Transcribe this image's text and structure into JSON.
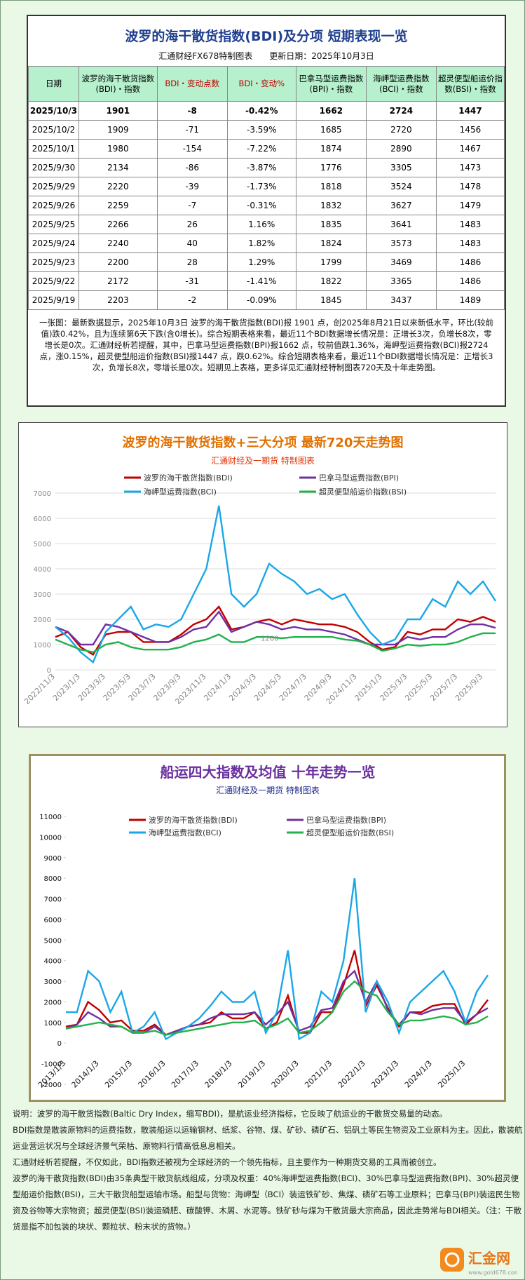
{
  "header": {
    "title": "波罗的海干散货指数(BDI)及分项  短期表现一览",
    "source": "汇通财经FX678特制图表",
    "updated": "更新日期：2025年10月3日"
  },
  "table": {
    "header": [
      "日期",
      "波罗的海干散货指数(BDI)・指数",
      "BDI・变动点数",
      "BDI・变动%",
      "巴拿马型运费指数(BPI)・指数",
      "海岬型运费指数(BCI)・指数",
      "超灵便型船运价指数(BSI)・指数"
    ],
    "rows": [
      [
        "2025/10/3",
        "1901",
        "-8",
        "-0.42%",
        "1662",
        "2724",
        "1447"
      ],
      [
        "2025/10/2",
        "1909",
        "-71",
        "-3.59%",
        "1685",
        "2720",
        "1456"
      ],
      [
        "2025/10/1",
        "1980",
        "-154",
        "-7.22%",
        "1874",
        "2890",
        "1467"
      ],
      [
        "2025/9/30",
        "2134",
        "-86",
        "-3.87%",
        "1776",
        "3305",
        "1473"
      ],
      [
        "2025/9/29",
        "2220",
        "-39",
        "-1.73%",
        "1818",
        "3524",
        "1478"
      ],
      [
        "2025/9/26",
        "2259",
        "-7",
        "-0.31%",
        "1832",
        "3627",
        "1479"
      ],
      [
        "2025/9/25",
        "2266",
        "26",
        "1.16%",
        "1835",
        "3641",
        "1483"
      ],
      [
        "2025/9/24",
        "2240",
        "40",
        "1.82%",
        "1824",
        "3573",
        "1483"
      ],
      [
        "2025/9/23",
        "2200",
        "28",
        "1.29%",
        "1799",
        "3469",
        "1486"
      ],
      [
        "2025/9/22",
        "2172",
        "-31",
        "-1.41%",
        "1822",
        "3365",
        "1486"
      ],
      [
        "2025/9/19",
        "2203",
        "-2",
        "-0.09%",
        "1845",
        "3437",
        "1489"
      ]
    ]
  },
  "summary": "一张图：最新数据显示，2025年10月3日 波罗的海干散货指数(BDI)报 1901 点，创2025年8月21日以来新低水平，环比(较前值)跌0.42%，且为连续第6天下跌(含0增长)。综合短期表格来看，最近11个BDI数据增长情况是：正增长3次，负增长8次，零增长是0次。汇通财经析若提醒，其中，巴拿马型运费指数(BPI)报1662 点，较前值跌1.36%，海岬型运费指数(BCI)报2724 点，涨0.15%，超灵便型船运价指数(BSI)报1447 点，跌0.62%。综合短期表格来看，最近11个BDI数据增长情况是：正增长3次，负增长8次，零增长是0次。短期见上表格，更多详见汇通财经特制图表720天及十年走势图。",
  "chart_data": [
    {
      "type": "line",
      "title": "波罗的海干散货指数+三大分项  最新720天走势图",
      "subtitle": "汇通财经及一期货  特制图表",
      "annotation": "1260",
      "grid": true,
      "categories": [
        "2022/11/3",
        null,
        "2023/1/3",
        null,
        "2023/3/3",
        null,
        "2023/5/3",
        null,
        "2023/7/3",
        null,
        "2023/9/3",
        null,
        "2023/11/3",
        null,
        "2024/1/3",
        null,
        "2024/3/3",
        null,
        "2024/5/3",
        null,
        "2024/7/3",
        null,
        "2024/9/3",
        null,
        "2024/11/3",
        null,
        "2025/1/3",
        null,
        "2025/3/3",
        null,
        "2025/5/3",
        null,
        "2025/7/3",
        null,
        "2025/9/3",
        null
      ],
      "ylim": [
        0,
        7000
      ],
      "yticks": [
        0,
        1000,
        2000,
        3000,
        4000,
        5000,
        6000,
        7000
      ],
      "series": [
        {
          "name": "波罗的海干散货指数(BDI)",
          "color": "#c00000",
          "values": [
            1300,
            1500,
            900,
            600,
            1400,
            1500,
            1500,
            1100,
            1100,
            1100,
            1400,
            1800,
            2000,
            2500,
            1600,
            1700,
            1900,
            2000,
            1800,
            2000,
            1900,
            1800,
            1800,
            1700,
            1500,
            1100,
            800,
            900,
            1500,
            1400,
            1600,
            1600,
            2000,
            1900,
            2100,
            1901
          ]
        },
        {
          "name": "巴拿马型运费指数(BPI)",
          "color": "#7030a0",
          "values": [
            1700,
            1500,
            1000,
            1000,
            1800,
            1700,
            1500,
            1300,
            1100,
            1100,
            1300,
            1600,
            1700,
            2300,
            1500,
            1700,
            1900,
            1800,
            1600,
            1700,
            1600,
            1600,
            1500,
            1400,
            1200,
            1000,
            1000,
            1000,
            1300,
            1200,
            1300,
            1300,
            1600,
            1800,
            1800,
            1662
          ]
        },
        {
          "name": "海岬型运费指数(BCI)",
          "color": "#1aa7e8",
          "values": [
            1700,
            1300,
            700,
            300,
            1500,
            2000,
            2500,
            1600,
            1800,
            1700,
            2000,
            3000,
            4000,
            6500,
            3000,
            2500,
            3000,
            4200,
            3800,
            3500,
            3000,
            3200,
            2800,
            3000,
            2200,
            1500,
            1000,
            1200,
            2000,
            2000,
            2800,
            2500,
            3500,
            3000,
            3500,
            2724
          ]
        },
        {
          "name": "超灵便型船运价指数(BSI)",
          "color": "#22b14c",
          "values": [
            1200,
            1000,
            800,
            700,
            1000,
            1100,
            900,
            800,
            800,
            800,
            900,
            1100,
            1200,
            1400,
            1100,
            1100,
            1300,
            1300,
            1250,
            1300,
            1300,
            1300,
            1300,
            1200,
            1150,
            1000,
            750,
            850,
            1000,
            950,
            1000,
            1000,
            1100,
            1300,
            1450,
            1447
          ]
        }
      ]
    },
    {
      "type": "line",
      "title": "船运四大指数及均值 十年走势一览",
      "subtitle": "汇通财经及一期货 特制图表",
      "grid": false,
      "categories": [
        "2013/1/3",
        null,
        null,
        "2014/1/3",
        null,
        null,
        "2015/1/3",
        null,
        null,
        "2016/1/3",
        null,
        null,
        "2017/1/3",
        null,
        null,
        "2018/1/3",
        null,
        null,
        "2019/1/3",
        null,
        null,
        "2020/1/3",
        null,
        null,
        "2021/1/3",
        null,
        null,
        "2022/1/3",
        null,
        null,
        "2023/1/3",
        null,
        null,
        "2024/1/3",
        null,
        null,
        "2025/1/3",
        null,
        null
      ],
      "ylim": [
        -2000,
        11000
      ],
      "yticks": [
        -2000,
        -1000,
        0,
        1000,
        2000,
        3000,
        4000,
        5000,
        6000,
        7000,
        8000,
        9000,
        10000,
        11000
      ],
      "series": [
        {
          "name": "波罗的海干散货指数(BDI)",
          "color": "#c00000",
          "values": [
            800,
            900,
            2000,
            1600,
            1000,
            1100,
            600,
            600,
            900,
            400,
            600,
            800,
            900,
            1000,
            1500,
            1200,
            1200,
            1500,
            700,
            1000,
            2300,
            500,
            500,
            1500,
            1500,
            2800,
            4500,
            1800,
            2800,
            1700,
            800,
            1500,
            1500,
            1800,
            1900,
            1900,
            900,
            1400,
            2100
          ]
        },
        {
          "name": "巴拿马型运费指数(BPI)",
          "color": "#7030a0",
          "values": [
            700,
            900,
            1500,
            1200,
            800,
            800,
            500,
            500,
            800,
            400,
            600,
            800,
            900,
            1200,
            1400,
            1400,
            1400,
            1500,
            900,
            1400,
            2000,
            600,
            800,
            1600,
            1700,
            3000,
            3500,
            2000,
            3000,
            1600,
            900,
            1500,
            1400,
            1600,
            1700,
            1700,
            1000,
            1400,
            1700
          ]
        },
        {
          "name": "海岬型运费指数(BCI)",
          "color": "#1aa7e8",
          "values": [
            1500,
            1500,
            3500,
            3000,
            1500,
            2500,
            500,
            800,
            1500,
            200,
            500,
            800,
            1200,
            1800,
            2500,
            2000,
            2000,
            2500,
            500,
            1500,
            4500,
            200,
            500,
            2500,
            2000,
            4000,
            8000,
            1500,
            3000,
            2000,
            500,
            2000,
            2500,
            3000,
            3500,
            2500,
            1000,
            2500,
            3300
          ]
        },
        {
          "name": "超灵便型船运价指数(BSI)",
          "color": "#22b14c",
          "values": [
            700,
            800,
            900,
            1000,
            900,
            800,
            500,
            500,
            600,
            400,
            500,
            600,
            700,
            800,
            900,
            1000,
            1000,
            1100,
            700,
            900,
            1200,
            500,
            600,
            1000,
            1500,
            2500,
            3000,
            2500,
            2300,
            1500,
            900,
            1100,
            1100,
            1200,
            1300,
            1200,
            900,
            1000,
            1300
          ]
        }
      ]
    }
  ],
  "notes": [
    "说明：波罗的海干散货指数(Baltic Dry Index，缩写BDI)，是航运业经济指标，它反映了航运业的干散货交易量的动态。",
    "BDI指数是散装原物料的运费指数，散装船运以运输钢材、纸浆、谷物、煤、矿砂、磷矿石、铝矾土等民生物资及工业原料为主。因此，散装航运业营运状况与全球经济景气荣枯、原物料行情高低息息相关。",
    "汇通财经析若提醒，不仅如此，BDI指数还被视为全球经济的一个领先指标，且主要作为一种期货交易的工具而被创立。",
    "波罗的海干散货指数(BDI)由35条典型干散货航线组成，分项及权重：40%海岬型运费指数(BCI)、30%巴拿马型运费指数(BPI)、30%超灵便型船运价指数(BSI)，三大干散货船型运输市场。船型与货物：海岬型（BCI）装运铁矿砂、焦煤、磷矿石等工业原料；巴拿马(BPI)装运民生物资及谷物等大宗物资；超灵便型(BSI)装运磷肥、碳酸钾、木屑、水泥等。铁矿砂与煤为干散货最大宗商品，因此走势常与BDI相关。（注：干散货是指不加包装的块状、颗粒状、粉末状的货物。）"
  ],
  "logo": {
    "name": "汇金网",
    "url": "www.gold678.com"
  }
}
